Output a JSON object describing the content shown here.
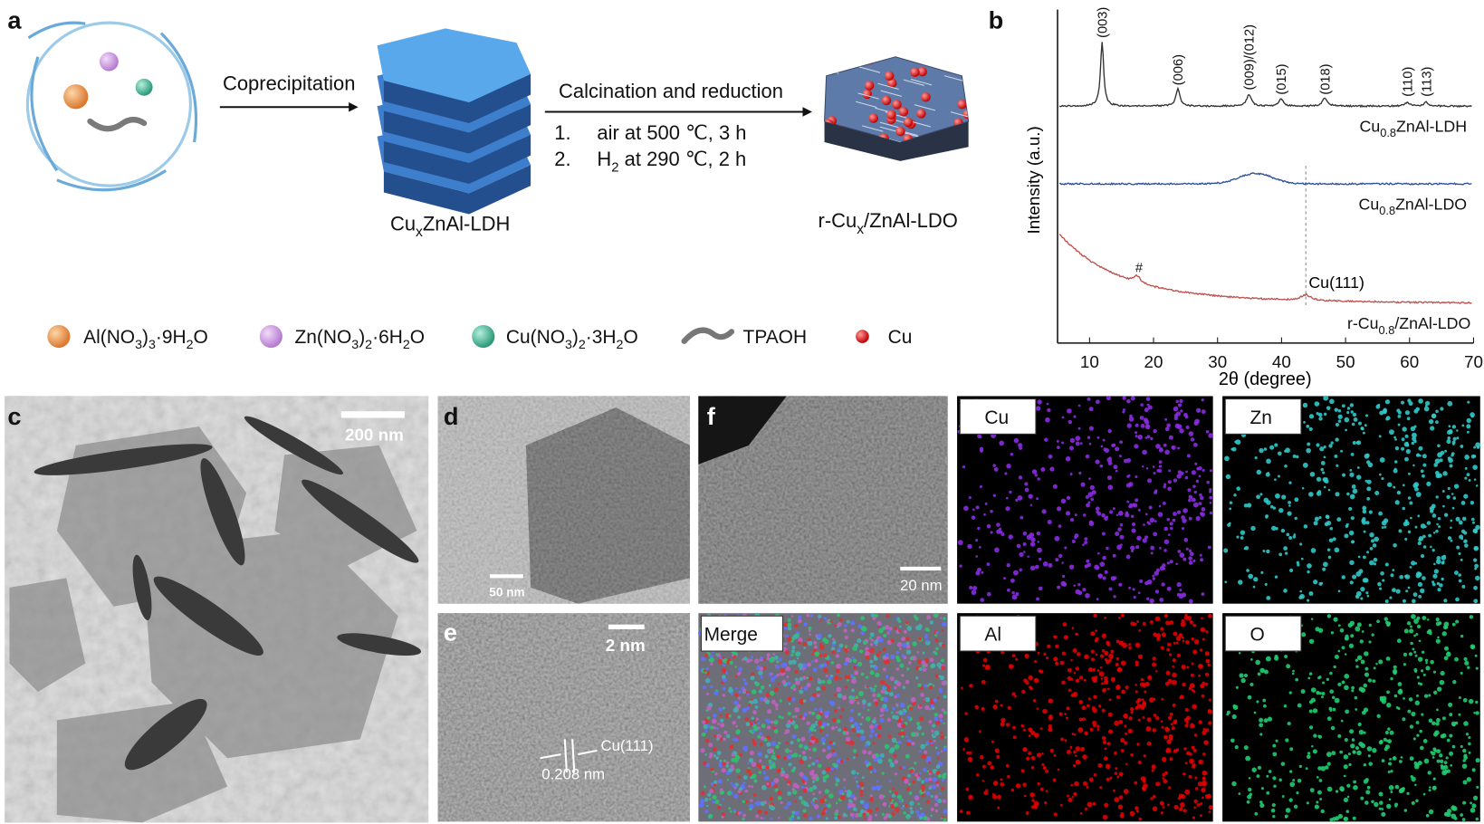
{
  "panel_labels": [
    "a",
    "b",
    "c",
    "d",
    "e",
    "f"
  ],
  "scheme": {
    "step1": "Coprecipitation",
    "step2": "Calcination and reduction",
    "conditions": [
      {
        "number": "1.",
        "text": [
          "air at 500 ℃, 3 h"
        ]
      },
      {
        "number": "2.",
        "text": [
          "H",
          "2",
          " at 290 ℃, 2 h"
        ]
      }
    ],
    "precursor_product": [
      "Cu",
      "x",
      "ZnAl-LDH"
    ],
    "final_product": [
      "r-Cu",
      "x",
      "/ZnAl-LDO"
    ],
    "legend": [
      [
        "Al(NO",
        "3",
        ")",
        "3",
        "·9H",
        "2",
        "O"
      ],
      [
        "Zn(NO",
        "3",
        ")",
        "2",
        "·6H",
        "2",
        "O"
      ],
      [
        "Cu(NO",
        "3",
        ")",
        "2",
        "·3H",
        "2",
        "O"
      ],
      [
        "TPAOH"
      ],
      [
        "Cu"
      ]
    ]
  },
  "xrd": {
    "x_label": "2θ (degree)",
    "y_label": "Intensity (a.u.)",
    "xlim": [
      5,
      70
    ],
    "xticks": [
      10,
      20,
      30,
      40,
      50,
      60,
      70
    ],
    "peaks": [
      "(003)",
      "(006)",
      "(009)/(012)",
      "(015)",
      "(018)",
      "(110)",
      "(113)"
    ],
    "hash": "#",
    "cu_peak": "Cu(111)",
    "traces": [
      [
        "Cu",
        "0.8",
        "ZnAl-LDH"
      ],
      [
        "Cu",
        "0.8",
        "ZnAl-LDO"
      ],
      [
        "r-Cu",
        "0.8",
        "/ZnAl-LDO"
      ]
    ]
  },
  "micrographs": {
    "scale_bars": {
      "c": "200 nm",
      "d": "50 nm",
      "e": "2 nm",
      "f": "20 nm"
    },
    "lattice": "Cu(111)",
    "spacing": "0.208 nm",
    "maps": [
      "Cu",
      "Zn",
      "Merge",
      "Al",
      "O"
    ]
  }
}
